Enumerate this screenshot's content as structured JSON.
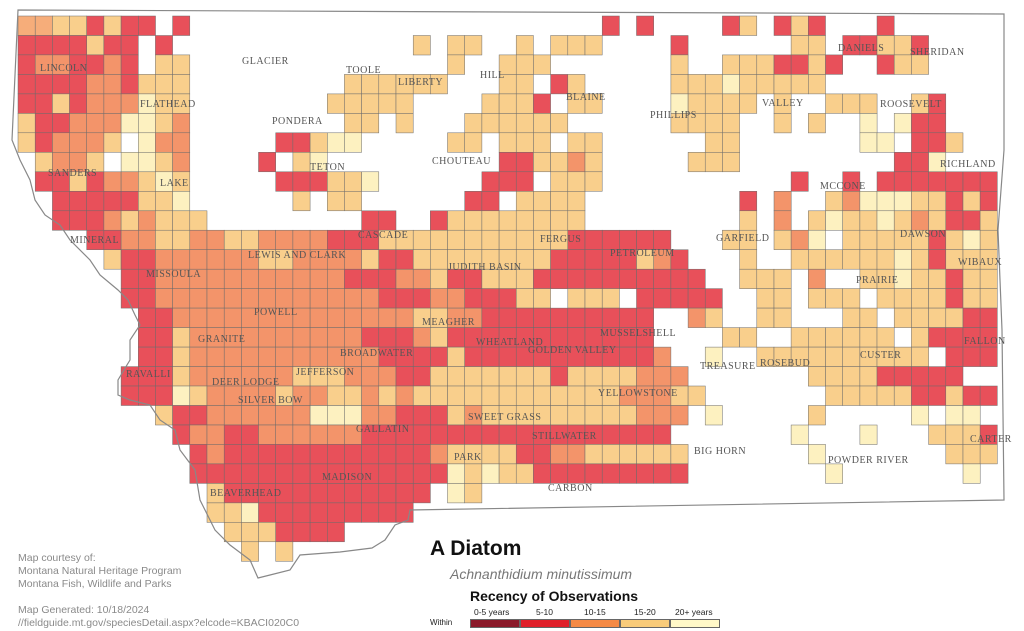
{
  "map": {
    "species_common": "A Diatom",
    "species_scientific": "Achnanthidium minutissimum",
    "legend_title": "Recency of Observations",
    "legend_within_label": "Within",
    "legend": [
      {
        "label": "0-5 years",
        "color": "#8b1a2a"
      },
      {
        "label": "5-10",
        "color": "#e0202a"
      },
      {
        "label": "10-15",
        "color": "#f58a45"
      },
      {
        "label": "15-20",
        "color": "#f8cb7a"
      },
      {
        "label": "20+ years",
        "color": "#fff8c8"
      }
    ],
    "map_fill_colors": {
      "red": "#e8505a",
      "dark_orange": "#f3946a",
      "orange": "#f6ad7a",
      "tan": "#f9cf8c",
      "pale": "#fdf1c0"
    },
    "credit_lines": [
      "Map courtesy of:",
      "Montana Natural Heritage Program",
      "Montana Fish, Wildlife and Parks"
    ],
    "generated": "Map Generated: 10/18/2024",
    "source_url": "//fieldguide.mt.gov/speciesDetail.aspx?elcode=KBACI020C0",
    "county_labels": [
      "GLACIER",
      "TOOLE",
      "LIBERTY",
      "HILL",
      "BLAINE",
      "PHILLIPS",
      "VALLEY",
      "DANIELS",
      "SHERIDAN",
      "ROOSEVELT",
      "LINCOLN",
      "FLATHEAD",
      "PONDERA",
      "TETON",
      "CHOUTEAU",
      "RICHLAND",
      "MCCONE",
      "SANDERS",
      "LAKE",
      "CASCADE",
      "FERGUS",
      "GARFIELD",
      "DAWSON",
      "WIBAUX",
      "MINERAL",
      "MISSOULA",
      "LEWIS AND CLARK",
      "JUDITH BASIN",
      "PETROLEUM",
      "PRAIRIE",
      "POWELL",
      "MEAGHER",
      "WHEATLAND",
      "GOLDEN VALLEY",
      "MUSSELSHELL",
      "GRANITE",
      "BROADWATER",
      "JEFFERSON",
      "RAVALLI",
      "DEER LODGE",
      "SILVER BOW",
      "ROSEBUD",
      "TREASURE",
      "CUSTER",
      "FALLON",
      "YELLOWSTONE",
      "SWEET GRASS",
      "STILLWATER",
      "GALLATIN",
      "PARK",
      "BIG HORN",
      "CARTER",
      "POWDER RIVER",
      "BEAVERHEAD",
      "MADISON",
      "CARBON"
    ]
  }
}
